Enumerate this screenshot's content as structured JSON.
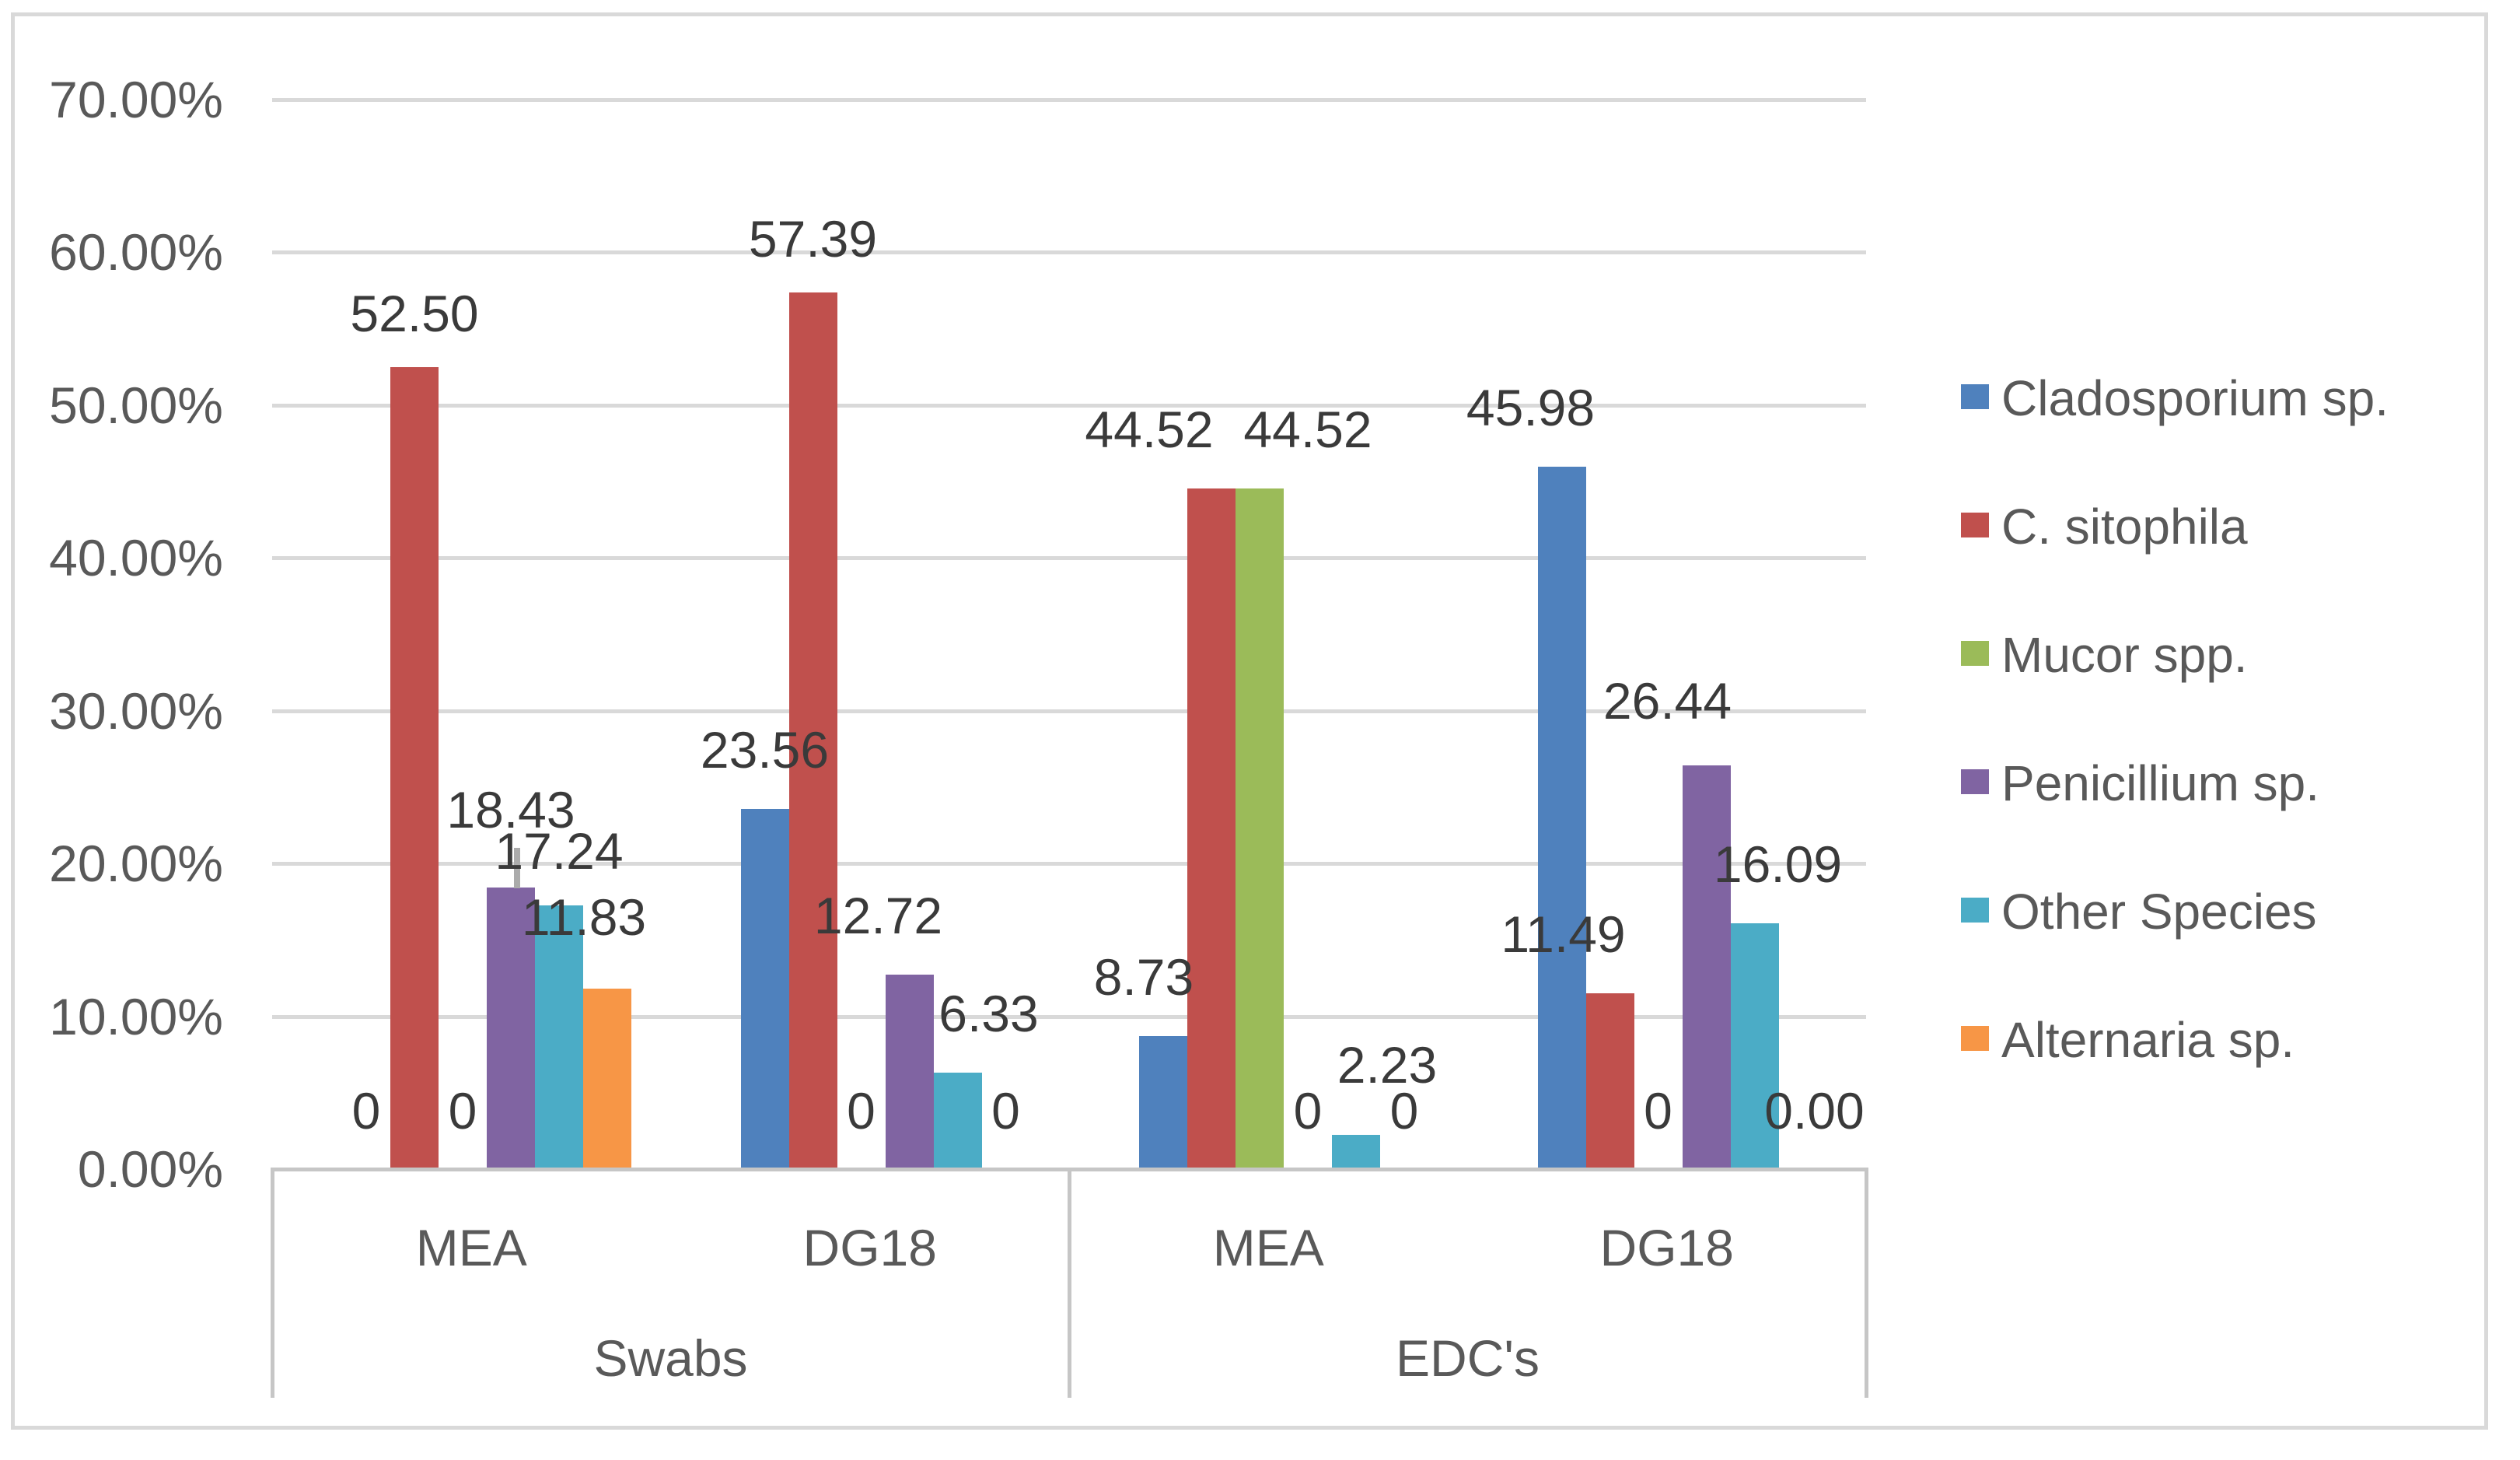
{
  "figure": {
    "background": "#ffffff",
    "border_color": "#d9d9d9"
  },
  "chart_data": {
    "type": "bar",
    "title": "",
    "xlabel": "",
    "ylabel": "",
    "ylim": [
      0,
      70
    ],
    "grid": true,
    "legend_position": "right",
    "y_ticks": [
      "0.00%",
      "10.00%",
      "20.00%",
      "30.00%",
      "40.00%",
      "50.00%",
      "60.00%",
      "70.00%"
    ],
    "group_labels_level1": [
      "MEA",
      "DG18",
      "MEA",
      "DG18"
    ],
    "group_labels_level2": [
      "Swabs",
      "EDC's"
    ],
    "categories": [
      "MEA Swabs",
      "DG18 Swabs",
      "MEA EDC's",
      "DG18 EDC's"
    ],
    "series": [
      {
        "name": "Cladosporium sp.",
        "color": "#4F81BD",
        "values": [
          0,
          23.56,
          8.73,
          45.98
        ],
        "labels": [
          "0",
          "23.56",
          "8.73",
          "45.98"
        ]
      },
      {
        "name": "C. sitophila",
        "color": "#C0504D",
        "values": [
          52.5,
          57.39,
          44.52,
          11.49
        ],
        "labels": [
          "52.50",
          "57.39",
          "44.52",
          "11.49"
        ]
      },
      {
        "name": "Mucor spp.",
        "color": "#9BBB59",
        "values": [
          0,
          0,
          44.52,
          0
        ],
        "labels": [
          "0",
          "0",
          "44.52",
          "0"
        ]
      },
      {
        "name": "Penicillium sp.",
        "color": "#8064A2",
        "values": [
          18.43,
          12.72,
          0,
          26.44
        ],
        "labels": [
          "18.43",
          "12.72",
          "0",
          "26.44"
        ]
      },
      {
        "name": "Other Species",
        "color": "#4BACC6",
        "values": [
          17.24,
          6.33,
          2.23,
          16.09
        ],
        "labels": [
          "17.24",
          "6.33",
          "2.23",
          "16.09"
        ]
      },
      {
        "name": "Alternaria sp.",
        "color": "#F79646",
        "values": [
          11.83,
          0,
          0,
          0
        ],
        "labels": [
          "11.83",
          "0",
          "0",
          "0.00"
        ]
      }
    ]
  }
}
